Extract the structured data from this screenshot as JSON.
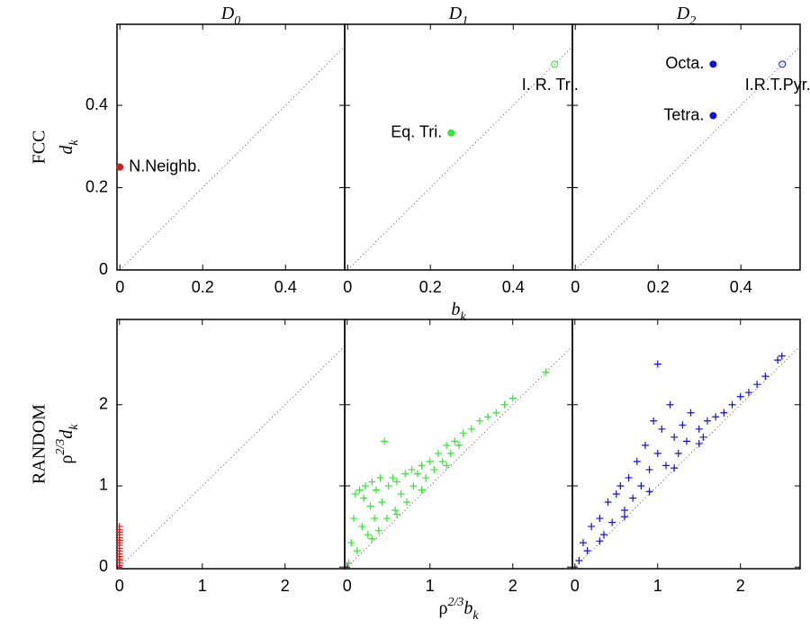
{
  "chart_data": [
    {
      "type": "scatter",
      "title": [
        {
          "text": "D"
        },
        {
          "text": "0",
          "pos": "sub"
        }
      ],
      "row_label": "FCC",
      "ylabel": [
        {
          "text": "d"
        },
        {
          "text": "k",
          "pos": "sub"
        }
      ],
      "x": [
        0
      ],
      "values": [
        0.25
      ],
      "color": "#cc1f1f",
      "marker": [
        "filled"
      ],
      "labels": [
        "N.Neighb."
      ],
      "label_pos": [
        "right"
      ],
      "xlim": [
        -0.007,
        0.543
      ],
      "ylim": [
        0,
        0.597
      ],
      "xticks": [
        0,
        0.2,
        0.4
      ],
      "yticks": [
        0,
        0.2,
        0.4
      ]
    },
    {
      "type": "scatter",
      "title": [
        {
          "text": "D"
        },
        {
          "text": "1",
          "pos": "sub"
        }
      ],
      "xlabel": [
        {
          "text": "b"
        },
        {
          "text": "k",
          "pos": "sub"
        }
      ],
      "x": [
        0.25,
        0.5
      ],
      "values": [
        0.333,
        0.5
      ],
      "color": "#33e633",
      "marker": [
        "filled",
        "open"
      ],
      "labels": [
        "Eq. Tri.",
        "I. R. Tri."
      ],
      "label_pos": [
        "left",
        "below"
      ],
      "xlim": [
        -0.007,
        0.543
      ],
      "ylim": [
        0,
        0.597
      ],
      "xticks": [
        0,
        0.2,
        0.4
      ]
    },
    {
      "type": "scatter",
      "title": [
        {
          "text": "D"
        },
        {
          "text": "2",
          "pos": "sub"
        }
      ],
      "x": [
        0.333,
        0.333,
        0.5
      ],
      "values": [
        0.5,
        0.375,
        0.5
      ],
      "color": "#1010e6",
      "marker": [
        "filled",
        "filled",
        "open"
      ],
      "labels": [
        "Octa.",
        "Tetra.",
        "I.R.T.Pyr."
      ],
      "label_pos": [
        "left",
        "left",
        "below"
      ],
      "xlim": [
        -0.007,
        0.543
      ],
      "ylim": [
        0,
        0.597
      ],
      "xticks": [
        0,
        0.2,
        0.4
      ]
    },
    {
      "type": "scatter",
      "row_label": "RANDOM",
      "ylabel": [
        {
          "text": "ρ"
        },
        {
          "text": "2/3",
          "pos": "sup"
        },
        {
          "text": "d"
        },
        {
          "text": "k",
          "pos": "sub"
        }
      ],
      "x": [
        0,
        0,
        0,
        0,
        0,
        0,
        0,
        0,
        0,
        0,
        0,
        0,
        0,
        0,
        0,
        0
      ],
      "values": [
        0.02,
        0.05,
        0.08,
        0.1,
        0.13,
        0.16,
        0.2,
        0.23,
        0.27,
        0.3,
        0.33,
        0.36,
        0.4,
        0.43,
        0.46,
        0.5
      ],
      "color": "#cc1f1f",
      "marker": "plus",
      "xlim": [
        -0.03,
        2.72
      ],
      "ylim": [
        -0.02,
        3.05
      ],
      "xticks": [
        0,
        1,
        2
      ],
      "yticks": [
        0,
        1,
        2
      ]
    },
    {
      "type": "scatter",
      "xlabel": [
        {
          "text": "ρ"
        },
        {
          "text": "2/3",
          "pos": "sup"
        },
        {
          "text": "b"
        },
        {
          "text": "k",
          "pos": "sub"
        }
      ],
      "x": [
        0.02,
        0.05,
        0.08,
        0.1,
        0.12,
        0.15,
        0.18,
        0.2,
        0.22,
        0.25,
        0.28,
        0.3,
        0.33,
        0.35,
        0.38,
        0.4,
        0.42,
        0.45,
        0.48,
        0.5,
        0.55,
        0.58,
        0.6,
        0.65,
        0.7,
        0.72,
        0.78,
        0.8,
        0.85,
        0.9,
        0.95,
        1.0,
        1.05,
        1.1,
        1.15,
        1.2,
        1.25,
        1.3,
        1.35,
        1.4,
        1.5,
        1.6,
        1.7,
        1.8,
        1.9,
        2.0,
        2.4,
        0.3,
        0.6,
        0.9,
        1.2
      ],
      "values": [
        0.05,
        0.3,
        0.6,
        0.9,
        0.2,
        0.95,
        0.5,
        0.85,
        1.0,
        0.4,
        0.75,
        1.05,
        0.6,
        0.95,
        0.45,
        1.1,
        0.8,
        1.55,
        0.6,
        1.0,
        1.1,
        0.7,
        1.05,
        0.9,
        1.15,
        0.8,
        1.2,
        1.0,
        1.15,
        1.25,
        1.1,
        1.3,
        1.2,
        1.4,
        1.3,
        1.5,
        1.4,
        1.55,
        1.5,
        1.65,
        1.7,
        1.8,
        1.85,
        1.9,
        2.0,
        2.08,
        2.4,
        0.35,
        0.65,
        0.95,
        1.25
      ],
      "color": "#33e633",
      "marker": "plus",
      "xlim": [
        -0.03,
        2.72
      ],
      "ylim": [
        -0.02,
        3.05
      ],
      "xticks": [
        0,
        1,
        2
      ]
    },
    {
      "type": "scatter",
      "x": [
        0.05,
        0.1,
        0.15,
        0.2,
        0.3,
        0.35,
        0.4,
        0.45,
        0.5,
        0.55,
        0.6,
        0.65,
        0.7,
        0.75,
        0.8,
        0.85,
        0.9,
        0.95,
        1.0,
        1.0,
        1.05,
        1.1,
        1.15,
        1.2,
        1.25,
        1.3,
        1.35,
        1.4,
        1.5,
        1.55,
        1.6,
        1.7,
        1.8,
        1.9,
        2.0,
        2.1,
        2.2,
        2.3,
        2.5,
        2.45,
        0.6,
        0.9,
        1.2,
        0.3,
        1.5
      ],
      "values": [
        0.08,
        0.3,
        0.2,
        0.5,
        0.6,
        0.4,
        0.8,
        0.55,
        0.9,
        1.0,
        0.7,
        1.1,
        0.85,
        1.3,
        1.0,
        1.5,
        1.2,
        1.8,
        1.4,
        2.5,
        1.7,
        1.25,
        2.0,
        1.6,
        1.4,
        1.75,
        1.55,
        1.9,
        1.7,
        1.6,
        1.8,
        1.85,
        1.9,
        2.0,
        2.1,
        2.15,
        2.25,
        2.35,
        2.6,
        2.55,
        0.62,
        0.93,
        1.22,
        0.32,
        1.52
      ],
      "color": "#1010e6",
      "marker": "plus",
      "xlim": [
        -0.03,
        2.72
      ],
      "ylim": [
        -0.02,
        3.05
      ],
      "xticks": [
        0,
        1,
        2
      ]
    }
  ]
}
